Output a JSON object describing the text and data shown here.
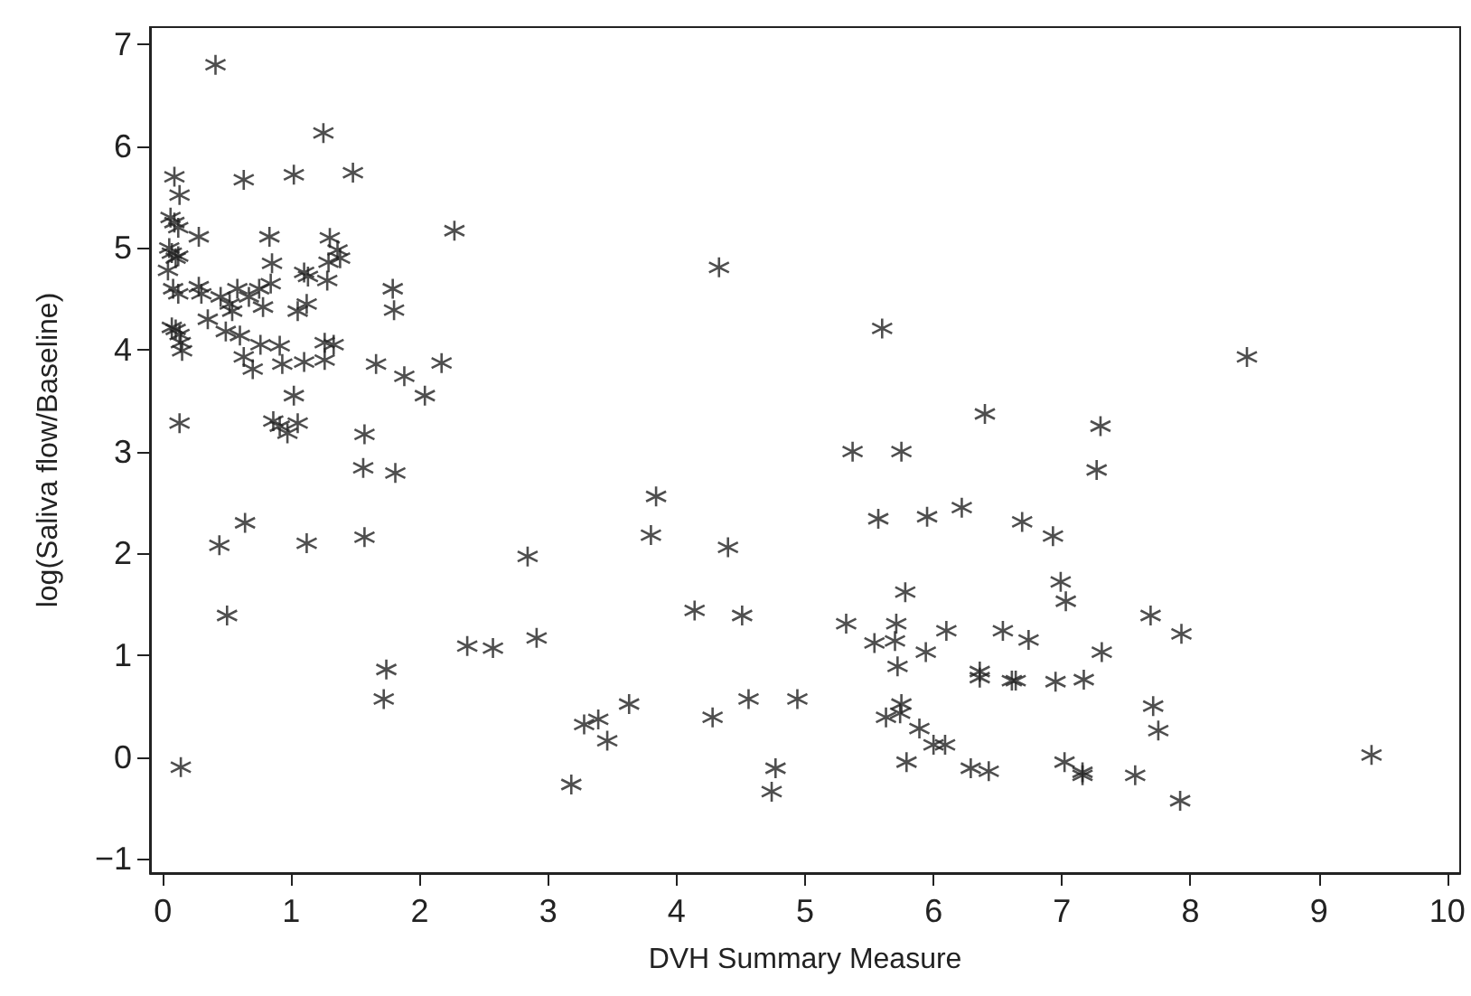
{
  "chart_data": {
    "type": "scatter",
    "xlabel": "DVH Summary Measure",
    "ylabel": "log(Saliva flow/Baseline)",
    "xlim": [
      -0.1,
      10.1
    ],
    "ylim": [
      -1.14,
      7.17
    ],
    "xticks": [
      0,
      1,
      2,
      3,
      4,
      5,
      6,
      7,
      8,
      9,
      10
    ],
    "yticks": [
      {
        "value": -1,
        "label": "−1"
      },
      0,
      1,
      2,
      3,
      4,
      5,
      6,
      7
    ],
    "grid": false,
    "marker": "cross",
    "series": [
      {
        "color": "#222222",
        "x": [
          0.41,
          1.25,
          0.09,
          0.63,
          1.02,
          1.48,
          0.13,
          2.27,
          0.06,
          0.09,
          0.12,
          0.05,
          0.07,
          0.1,
          0.12,
          0.04,
          0.28,
          0.83,
          0.85,
          1.3,
          1.29,
          1.36,
          1.38,
          1.28,
          1.1,
          1.13,
          0.08,
          0.12,
          0.28,
          0.3,
          0.45,
          0.58,
          0.52,
          0.54,
          0.67,
          0.75,
          0.78,
          0.84,
          0.35,
          1.05,
          1.12,
          0.07,
          0.1,
          0.13,
          0.14,
          0.15,
          0.49,
          0.6,
          0.63,
          0.7,
          0.76,
          0.91,
          0.93,
          1.1,
          1.02,
          1.26,
          1.26,
          1.33,
          0.13,
          0.86,
          0.91,
          0.97,
          1.05,
          1.79,
          1.8,
          1.66,
          1.88,
          2.04,
          2.17,
          1.57,
          1.56,
          1.81,
          0.44,
          0.64,
          0.5,
          1.12,
          1.57,
          1.74,
          1.72,
          0.14,
          2.37,
          2.57,
          4.33,
          5.6,
          6.4,
          5.37,
          5.75,
          3.84,
          3.8,
          4.4,
          2.84,
          5.57,
          5.95,
          6.22,
          5.78,
          4.14,
          4.51,
          2.91,
          5.32,
          5.71,
          5.54,
          5.7,
          6.1,
          6.54,
          5.94,
          5.72,
          6.36,
          6.36,
          6.61,
          3.63,
          4.56,
          4.94,
          5.75,
          3.28,
          3.39,
          4.28,
          5.63,
          5.74,
          3.46,
          5.89,
          6.0,
          6.09,
          4.77,
          5.79,
          6.29,
          6.43,
          4.74,
          3.18,
          8.44,
          7.3,
          7.27,
          6.69,
          6.93,
          6.99,
          7.03,
          7.69,
          7.93,
          6.74,
          7.31,
          6.64,
          6.95,
          7.17,
          7.71,
          7.75,
          7.02,
          7.16,
          7.16,
          7.57,
          7.92,
          9.41
        ],
        "values": [
          6.8,
          6.13,
          5.7,
          5.67,
          5.72,
          5.74,
          5.52,
          5.17,
          5.3,
          5.25,
          5.2,
          5.0,
          4.95,
          4.9,
          4.92,
          4.78,
          5.11,
          5.11,
          4.85,
          5.1,
          4.86,
          4.98,
          4.9,
          4.68,
          4.76,
          4.72,
          4.6,
          4.55,
          4.62,
          4.55,
          4.52,
          4.6,
          4.45,
          4.38,
          4.52,
          4.6,
          4.42,
          4.65,
          4.3,
          4.38,
          4.45,
          4.22,
          4.2,
          4.15,
          4.07,
          3.99,
          4.18,
          4.14,
          3.93,
          3.81,
          4.05,
          4.04,
          3.86,
          3.88,
          3.55,
          3.9,
          4.07,
          4.05,
          3.28,
          3.3,
          3.25,
          3.18,
          3.28,
          4.6,
          4.39,
          3.86,
          3.74,
          3.55,
          3.87,
          3.17,
          2.84,
          2.79,
          2.08,
          2.3,
          1.39,
          2.1,
          2.16,
          0.86,
          0.57,
          -0.1,
          1.09,
          1.07,
          4.81,
          4.21,
          3.37,
          3.0,
          3.0,
          2.56,
          2.18,
          2.06,
          1.97,
          2.34,
          2.36,
          2.45,
          1.62,
          1.44,
          1.39,
          1.17,
          1.31,
          1.31,
          1.12,
          1.14,
          1.24,
          1.24,
          1.03,
          0.89,
          0.84,
          0.78,
          0.75,
          0.52,
          0.57,
          0.57,
          0.52,
          0.32,
          0.37,
          0.39,
          0.39,
          0.43,
          0.16,
          0.28,
          0.12,
          0.12,
          -0.11,
          -0.05,
          -0.11,
          -0.14,
          -0.34,
          -0.27,
          3.93,
          3.25,
          2.82,
          2.31,
          2.17,
          1.72,
          1.53,
          1.39,
          1.21,
          1.15,
          1.03,
          0.75,
          0.74,
          0.76,
          0.5,
          0.26,
          -0.05,
          -0.15,
          -0.18,
          -0.18,
          -0.43,
          0.02
        ]
      }
    ]
  }
}
